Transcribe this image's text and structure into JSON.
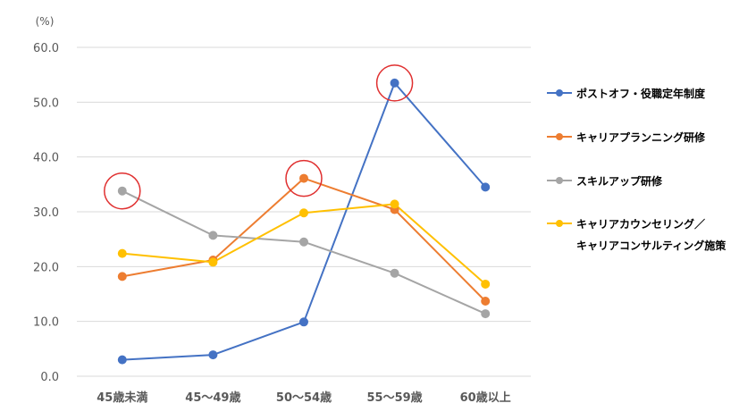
{
  "chart_data": {
    "type": "line",
    "y_unit": "(%)",
    "categories": [
      "45歳未満",
      "45～49歳",
      "50～54歳",
      "55～59歳",
      "60歳以上"
    ],
    "ylim": [
      0,
      60
    ],
    "y_ticks": [
      "0.0",
      "10.0",
      "20.0",
      "30.0",
      "40.0",
      "50.0",
      "60.0"
    ],
    "grid": true,
    "legend_position": "right",
    "series": [
      {
        "name": "ポストオフ・役職定年制度",
        "color": "#4472C4",
        "values": [
          3.0,
          3.9,
          9.9,
          53.5,
          34.5
        ]
      },
      {
        "name": "キャリアプランニング研修",
        "color": "#ED7D31",
        "values": [
          18.2,
          21.2,
          36.1,
          30.4,
          13.7
        ]
      },
      {
        "name": "スキルアップ研修",
        "color": "#A5A5A5",
        "values": [
          33.8,
          25.7,
          24.5,
          18.8,
          11.4
        ]
      },
      {
        "name": "キャリアカウンセリング／\nキャリアコンサルティング施策",
        "name_lines": [
          "キャリアカウンセリング／",
          "キャリアコンサルティング施策"
        ],
        "color": "#FFC000",
        "values": [
          22.4,
          20.8,
          29.8,
          31.4,
          16.8
        ]
      }
    ],
    "highlight_circles": [
      {
        "category_index": 0,
        "series_index": 2
      },
      {
        "category_index": 2,
        "series_index": 1
      },
      {
        "category_index": 3,
        "series_index": 0
      }
    ],
    "highlight_color": "#E03030"
  }
}
